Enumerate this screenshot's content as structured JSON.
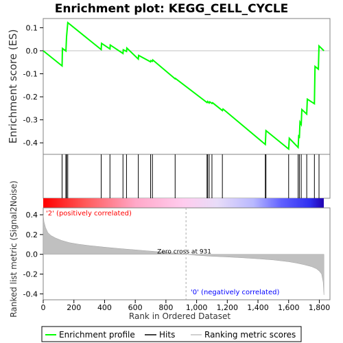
{
  "chart_data": {
    "title": "Enrichment plot: KEGG_CELL_CYCLE",
    "es_panel": {
      "type": "line",
      "ylabel": "Enrichment score (ES)",
      "ylim": [
        -0.45,
        0.14
      ],
      "yticks": [
        "0.1",
        "0.0",
        "-0.1",
        "-0.2",
        "-0.3",
        "-0.4"
      ],
      "ytick_values": [
        0.1,
        0.0,
        -0.1,
        -0.2,
        -0.3,
        -0.4
      ],
      "line_color": "#00ff00",
      "series": {
        "name": "Enrichment profile",
        "x": [
          0,
          123,
          125,
          148,
          152,
          160,
          378,
          380,
          435,
          437,
          520,
          522,
          543,
          545,
          620,
          622,
          700,
          702,
          712,
          714,
          860,
          862,
          1068,
          1072,
          1082,
          1086,
          1100,
          1104,
          1168,
          1172,
          1448,
          1452,
          1600,
          1604,
          1662,
          1666,
          1670,
          1674,
          1682,
          1686,
          1718,
          1722,
          1768,
          1772,
          1794,
          1798,
          1830
        ],
        "y": [
          0.0,
          -0.066,
          0.01,
          -0.001,
          0.06,
          0.122,
          0.005,
          0.032,
          0.008,
          0.025,
          -0.012,
          0.004,
          -0.003,
          0.012,
          -0.036,
          -0.02,
          -0.048,
          -0.043,
          -0.046,
          -0.04,
          -0.122,
          -0.12,
          -0.225,
          -0.22,
          -0.227,
          -0.222,
          -0.229,
          -0.226,
          -0.26,
          -0.253,
          -0.407,
          -0.347,
          -0.427,
          -0.38,
          -0.42,
          -0.365,
          -0.38,
          -0.31,
          -0.32,
          -0.255,
          -0.275,
          -0.21,
          -0.23,
          -0.068,
          -0.08,
          0.021,
          0.0
        ]
      }
    },
    "hits": {
      "name": "Hits",
      "x": [
        123,
        148,
        152,
        160,
        378,
        435,
        520,
        543,
        620,
        700,
        712,
        860,
        1068,
        1072,
        1082,
        1100,
        1168,
        1448,
        1452,
        1600,
        1662,
        1670,
        1682,
        1718,
        1768,
        1798
      ]
    },
    "rank_panel": {
      "type": "area",
      "ylabel": "Ranked list metric (Signal2Noise)",
      "xlabel": "Rank in Ordered Dataset",
      "xlim": [
        0,
        1850
      ],
      "ylim": [
        -0.46,
        0.47
      ],
      "xticks": [
        "0",
        "200",
        "400",
        "600",
        "800",
        "1,000",
        "1,200",
        "1,400",
        "1,600",
        "1,800"
      ],
      "xtick_values": [
        0,
        200,
        400,
        600,
        800,
        1000,
        1200,
        1400,
        1600,
        1800
      ],
      "yticks": [
        "0.4",
        "0.2",
        "0.0",
        "-0.2",
        "-0.4"
      ],
      "ytick_values": [
        0.4,
        0.2,
        0.0,
        -0.2,
        -0.4
      ],
      "fill_color": "#c0c0c0",
      "metric": {
        "name": "Ranking metric scores",
        "x": [
          0,
          5,
          15,
          30,
          50,
          80,
          120,
          170,
          230,
          300,
          400,
          500,
          600,
          700,
          800,
          931,
          1000,
          1100,
          1200,
          1300,
          1400,
          1500,
          1600,
          1650,
          1700,
          1750,
          1780,
          1800,
          1815,
          1825,
          1830
        ],
        "y": [
          0.4,
          0.33,
          0.27,
          0.22,
          0.19,
          0.165,
          0.14,
          0.118,
          0.102,
          0.088,
          0.072,
          0.058,
          0.045,
          0.032,
          0.02,
          0.0,
          -0.01,
          -0.02,
          -0.027,
          -0.035,
          -0.045,
          -0.057,
          -0.075,
          -0.088,
          -0.105,
          -0.125,
          -0.145,
          -0.17,
          -0.2,
          -0.28,
          -0.41
        ]
      },
      "zero_cross_label": "Zero cross at 931",
      "zero_cross": 931,
      "positive_label": "'2' (positively correlated)",
      "negative_label": "'0' (negatively correlated)",
      "positive_color": "#ff0000",
      "negative_color": "#0000ff"
    },
    "legend": {
      "placement": "bottom",
      "entries": [
        {
          "label": "Enrichment profile",
          "color": "#00ff00"
        },
        {
          "label": "Hits",
          "color": "#000000"
        },
        {
          "label": "Ranking metric scores",
          "color": "#c0c0c0"
        }
      ]
    }
  }
}
